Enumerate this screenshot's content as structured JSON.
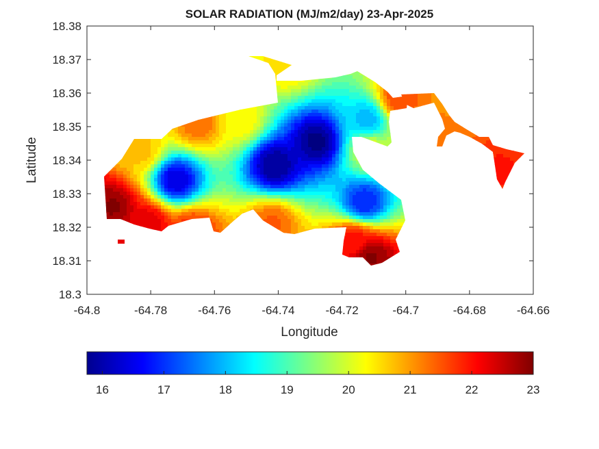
{
  "chart_data": {
    "type": "heatmap",
    "title": "SOLAR RADIATION (MJ/m2/day) 23-Apr-2025",
    "xlabel": "Longitude",
    "ylabel": "Latitude",
    "xlim": [
      -64.8,
      -64.66
    ],
    "ylim": [
      18.3,
      18.38
    ],
    "x_ticks": [
      "-64.8",
      "-64.78",
      "-64.76",
      "-64.74",
      "-64.72",
      "-64.7",
      "-64.68",
      "-64.66"
    ],
    "y_ticks": [
      "18.3",
      "18.31",
      "18.32",
      "18.33",
      "18.34",
      "18.35",
      "18.36",
      "18.37",
      "18.38"
    ],
    "colorbar": {
      "colormap": "jet",
      "range": [
        15.75,
        23
      ],
      "ticks": [
        "16",
        "17",
        "18",
        "19",
        "20",
        "21",
        "22",
        "23"
      ]
    },
    "field_centers": [
      {
        "lon": -64.741,
        "lat": 18.3385,
        "value": 15.9
      },
      {
        "lon": -64.728,
        "lat": 18.3455,
        "value": 15.8
      },
      {
        "lon": -64.772,
        "lat": 18.334,
        "value": 16.4
      },
      {
        "lon": -64.713,
        "lat": 18.3275,
        "value": 16.9
      },
      {
        "lon": -64.712,
        "lat": 18.352,
        "value": 18.0
      }
    ],
    "field_edges": [
      {
        "lon": -64.792,
        "lat": 18.326,
        "value": 22.9
      },
      {
        "lon": -64.781,
        "lat": 18.321,
        "value": 22.3
      },
      {
        "lon": -64.788,
        "lat": 18.316,
        "value": 22.3
      },
      {
        "lon": -64.711,
        "lat": 18.311,
        "value": 22.9
      },
      {
        "lon": -64.716,
        "lat": 18.316,
        "value": 22.0
      },
      {
        "lon": -64.767,
        "lat": 18.319,
        "value": 21.8
      },
      {
        "lon": -64.742,
        "lat": 18.321,
        "value": 21.4
      },
      {
        "lon": -64.783,
        "lat": 18.343,
        "value": 20.7
      },
      {
        "lon": -64.765,
        "lat": 18.351,
        "value": 21.3
      },
      {
        "lon": -64.752,
        "lat": 18.352,
        "value": 20.3
      },
      {
        "lon": -64.737,
        "lat": 18.369,
        "value": 20.5
      },
      {
        "lon": -64.711,
        "lat": 18.343,
        "value": 20.0
      },
      {
        "lon": -64.702,
        "lat": 18.358,
        "value": 21.6
      },
      {
        "lon": -64.693,
        "lat": 18.347,
        "value": 21.3
      },
      {
        "lon": -64.671,
        "lat": 18.337,
        "value": 21.9
      }
    ]
  }
}
